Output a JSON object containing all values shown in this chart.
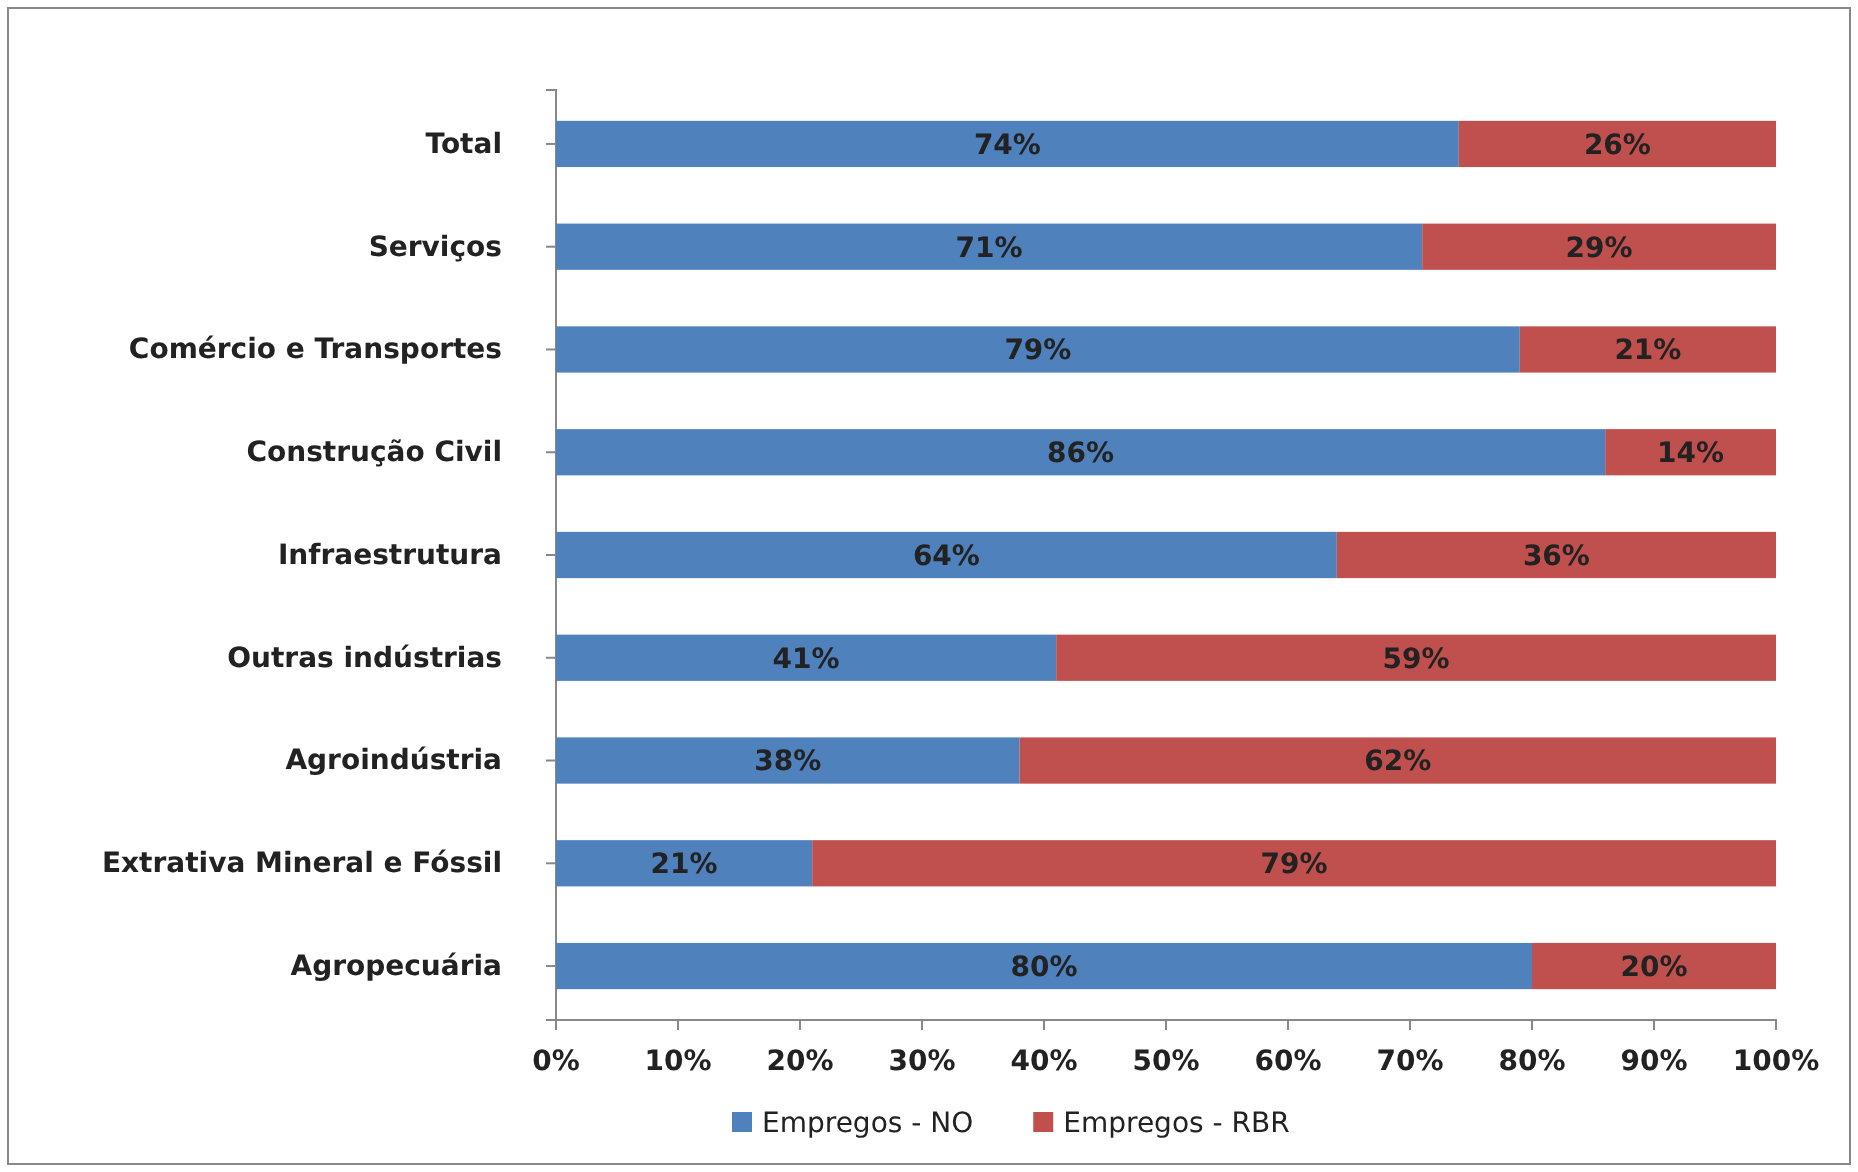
{
  "chart_data": {
    "type": "bar",
    "orientation": "horizontal",
    "stacked": true,
    "categories": [
      "Total",
      "Serviços",
      "Comércio e Transportes",
      "Construção Civil",
      "Infraestrutura",
      "Outras indústrias",
      "Agroindústria",
      "Extrativa Mineral e Fóssil",
      "Agropecuária"
    ],
    "series": [
      {
        "name": "Empregos - NO",
        "color": "#4f81bd",
        "values": [
          74,
          71,
          79,
          86,
          64,
          41,
          38,
          21,
          80
        ],
        "value_labels": [
          "74%",
          "71%",
          "79%",
          "86%",
          "64%",
          "41%",
          "38%",
          "21%",
          "80%"
        ]
      },
      {
        "name": "Empregos - RBR",
        "color": "#c0504d",
        "values": [
          26,
          29,
          21,
          14,
          36,
          59,
          62,
          79,
          20
        ],
        "value_labels": [
          "26%",
          "29%",
          "21%",
          "14%",
          "36%",
          "59%",
          "62%",
          "79%",
          "20%"
        ]
      }
    ],
    "xlim": [
      0,
      100
    ],
    "xticks": [
      {
        "value": 0,
        "label": "0%"
      },
      {
        "value": 10,
        "label": "10%"
      },
      {
        "value": 20,
        "label": "20%"
      },
      {
        "value": 30,
        "label": "30%"
      },
      {
        "value": 40,
        "label": "40%"
      },
      {
        "value": 50,
        "label": "50%"
      },
      {
        "value": 60,
        "label": "60%"
      },
      {
        "value": 70,
        "label": "70%"
      },
      {
        "value": 80,
        "label": "80%"
      },
      {
        "value": 90,
        "label": "90%"
      },
      {
        "value": 100,
        "label": "100%"
      }
    ],
    "legend": "bottom"
  }
}
